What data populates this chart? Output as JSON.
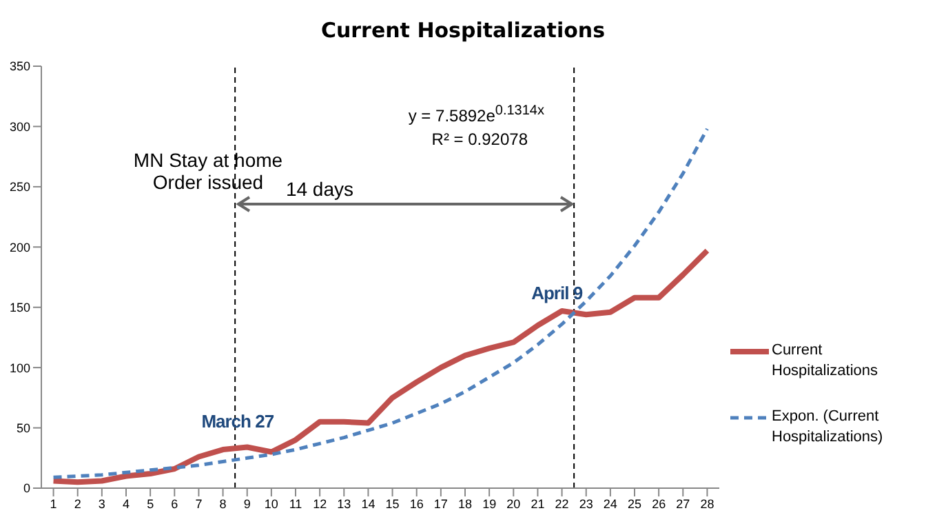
{
  "chart_data": {
    "type": "line",
    "title": "Current Hospitalizations",
    "x": [
      1,
      2,
      3,
      4,
      5,
      6,
      7,
      8,
      9,
      10,
      11,
      12,
      13,
      14,
      15,
      16,
      17,
      18,
      19,
      20,
      21,
      22,
      23,
      24,
      25,
      26,
      27,
      28
    ],
    "xlim": [
      0.5,
      28.5
    ],
    "xticks": [
      1,
      2,
      3,
      4,
      5,
      6,
      7,
      8,
      9,
      10,
      11,
      12,
      13,
      14,
      15,
      16,
      17,
      18,
      19,
      20,
      21,
      22,
      23,
      24,
      25,
      26,
      27,
      28
    ],
    "ylim": [
      0,
      350
    ],
    "yticks": [
      0,
      50,
      100,
      150,
      200,
      250,
      300,
      350
    ],
    "series": [
      {
        "name": "Current Hospitalizations",
        "color": "#c0504d",
        "line_style": "solid",
        "values": [
          6,
          5,
          6,
          10,
          12,
          16,
          26,
          32,
          34,
          30,
          40,
          55,
          55,
          54,
          75,
          88,
          100,
          110,
          116,
          121,
          135,
          147,
          144,
          146,
          158,
          158,
          177,
          197
        ]
      },
      {
        "name": "Expon. (Current Hospitalizations)",
        "color": "#4f81bd",
        "line_style": "dashed",
        "values": [
          9,
          10,
          11,
          13,
          15,
          17,
          19,
          22,
          25,
          28,
          32,
          37,
          42,
          48,
          54,
          62,
          70,
          80,
          92,
          104,
          119,
          136,
          155,
          176,
          201,
          229,
          261,
          298
        ]
      }
    ],
    "ref_lines": [
      {
        "axis": "x",
        "value": 8.5,
        "label": "March 27",
        "line_style": "dashed",
        "color": "#000000"
      },
      {
        "axis": "x",
        "value": 22.5,
        "label": "April 9",
        "line_style": "dashed",
        "color": "#000000"
      }
    ],
    "annotations": [
      "MN Stay at home Order issued",
      "14 days",
      "y = 7.5892e$^{0.1314x}$",
      "R² = 0.92078"
    ],
    "legend": "right",
    "marker": "none"
  }
}
